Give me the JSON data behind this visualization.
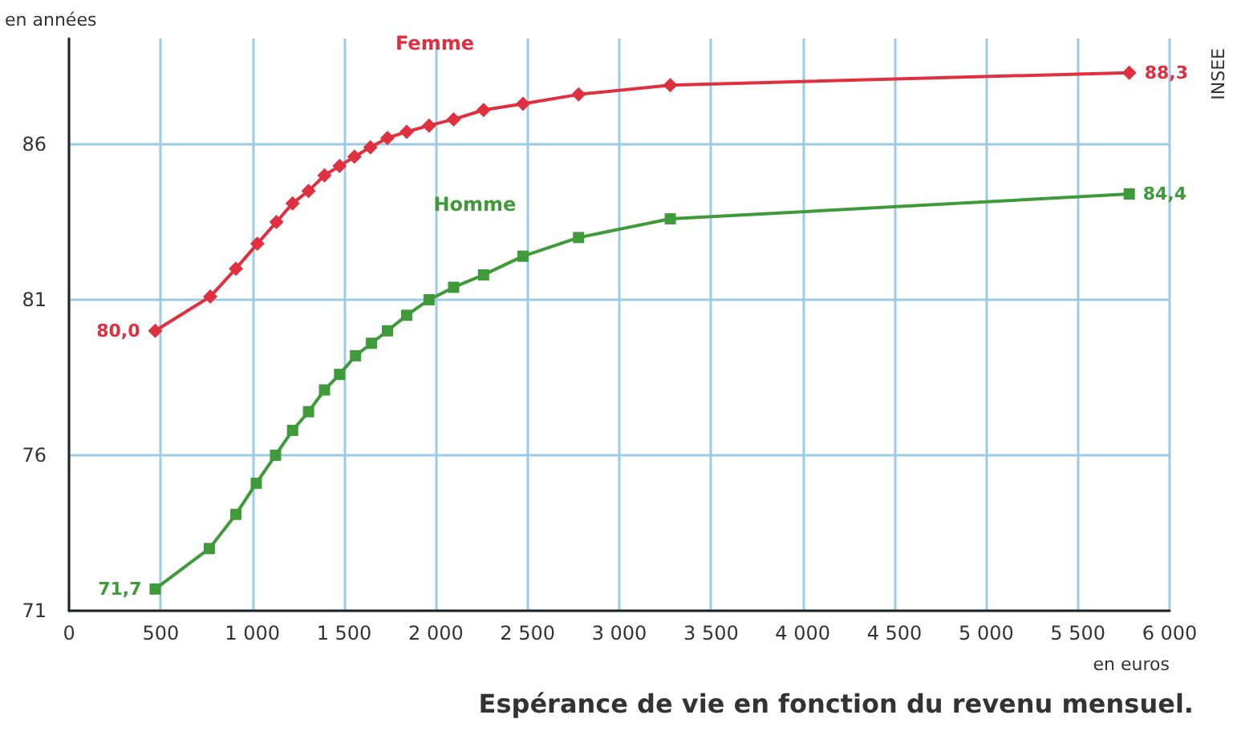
{
  "chart_data": {
    "type": "line",
    "title": "Espérance de vie en fonction du revenu mensuel.",
    "xlabel": "en euros",
    "ylabel": "en années",
    "annotations": [
      "INSEE"
    ],
    "xlim": [
      0,
      6000
    ],
    "ylim": [
      71,
      89.4
    ],
    "xticks": [
      0,
      500,
      {
        "value": 1000,
        "label": "1 000"
      },
      {
        "value": 1500,
        "label": "1 500"
      },
      {
        "value": 2000,
        "label": "2 000"
      },
      {
        "value": 2500,
        "label": "2 500"
      },
      {
        "value": 3000,
        "label": "3 000"
      },
      {
        "value": 3500,
        "label": "3 500"
      },
      {
        "value": 4000,
        "label": "4 000"
      },
      {
        "value": 4500,
        "label": "4 500"
      },
      {
        "value": 5000,
        "label": "5 000"
      },
      {
        "value": 5500,
        "label": "5 500"
      },
      {
        "value": 6000,
        "label": "6 000"
      }
    ],
    "yticks": [
      71,
      76,
      81,
      86
    ],
    "grid": true,
    "legend": false,
    "series": [
      {
        "name": "Femme",
        "color": "#e0303f",
        "marker": "diamond",
        "x": [
          470,
          770,
          910,
          1027,
          1131,
          1219,
          1306,
          1393,
          1475,
          1556,
          1643,
          1736,
          1841,
          1963,
          2097,
          2260,
          2475,
          2778,
          3278,
          5780
        ],
        "values": [
          80.0,
          81.1,
          82.0,
          82.8,
          83.5,
          84.1,
          84.5,
          85.0,
          85.3,
          85.6,
          85.9,
          86.2,
          86.4,
          86.6,
          86.8,
          87.1,
          87.3,
          87.6,
          87.9,
          88.3
        ],
        "value_labels": [
          "80,0",
          null,
          null,
          null,
          null,
          null,
          null,
          null,
          null,
          null,
          null,
          null,
          null,
          null,
          null,
          null,
          null,
          null,
          null,
          "88,3"
        ]
      },
      {
        "name": "Homme",
        "color": "#3f9a3a",
        "marker": "square",
        "x": [
          470,
          765,
          910,
          1021,
          1126,
          1219,
          1306,
          1393,
          1475,
          1562,
          1649,
          1736,
          1841,
          1963,
          2097,
          2260,
          2475,
          2778,
          3278,
          5780
        ],
        "values": [
          71.7,
          73.0,
          74.1,
          75.1,
          76.0,
          76.8,
          77.4,
          78.1,
          78.6,
          79.2,
          79.6,
          80.0,
          80.5,
          81.0,
          81.4,
          81.8,
          82.4,
          83.0,
          83.6,
          84.4
        ],
        "value_labels": [
          "71,7",
          null,
          null,
          null,
          null,
          null,
          null,
          null,
          null,
          null,
          null,
          null,
          null,
          null,
          null,
          null,
          null,
          null,
          null,
          "84,4"
        ]
      }
    ]
  }
}
